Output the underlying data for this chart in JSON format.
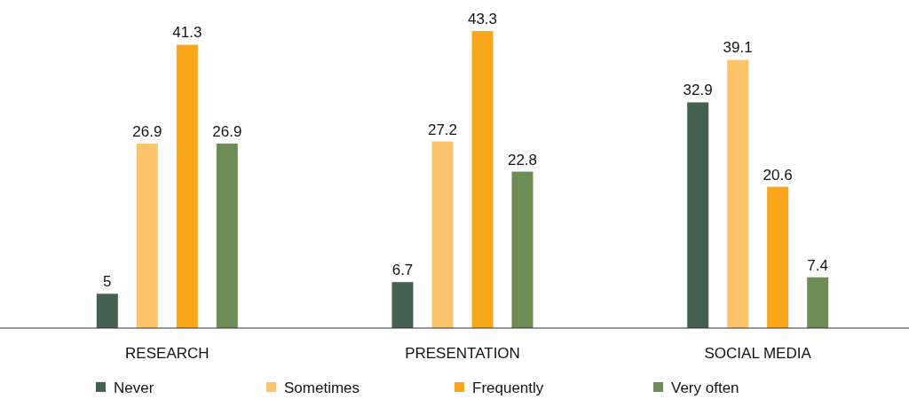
{
  "chart_data": {
    "type": "bar",
    "categories": [
      "RESEARCH",
      "PRESENTATION",
      "SOCIAL MEDIA"
    ],
    "series": [
      {
        "name": "Never",
        "color": "#44614f",
        "values": [
          5,
          6.7,
          32.9
        ]
      },
      {
        "name": "Sometimes",
        "color": "#fdc46c",
        "values": [
          26.9,
          27.2,
          39.1
        ]
      },
      {
        "name": "Frequently",
        "color": "#f9a61a",
        "values": [
          41.3,
          43.3,
          20.6
        ]
      },
      {
        "name": "Very often",
        "color": "#6e8c56",
        "values": [
          26.9,
          22.8,
          7.4
        ]
      }
    ],
    "data_labels": true,
    "legend": "bottom"
  }
}
